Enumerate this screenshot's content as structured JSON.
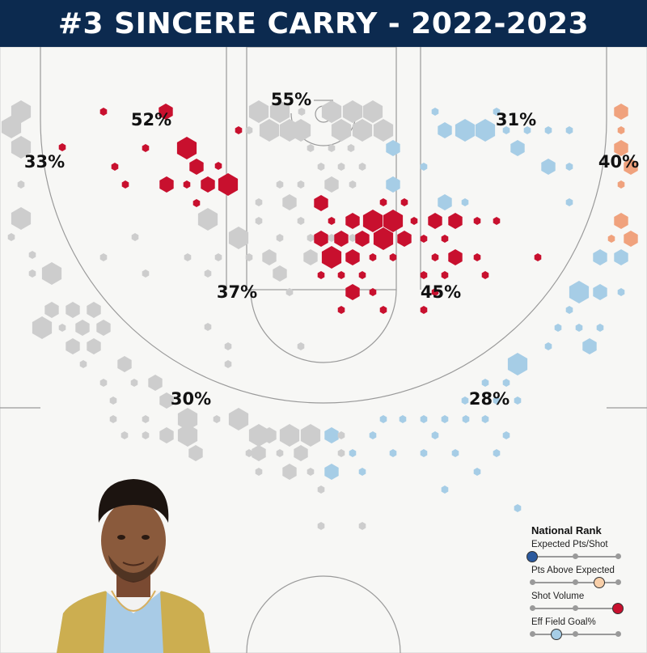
{
  "header": {
    "title": "#3 SINCERE CARRY - 2022-2023"
  },
  "colors": {
    "header_bg": "#0c2a4f",
    "hot": "#c8102e",
    "cold": "#a6cde6",
    "warm": "#f0a27d",
    "neutral": "#cdcdcd",
    "court_line": "#9a9a9a"
  },
  "chart_data": {
    "type": "hexbin shot chart",
    "title": "#3 SINCERE CARRY - 2022-2023",
    "zones": [
      {
        "zone": "above-break-left-wing",
        "fg_pct": "52%",
        "color": "hot"
      },
      {
        "zone": "top-of-key",
        "fg_pct": "55%",
        "color": "neutral"
      },
      {
        "zone": "above-break-right-wing",
        "fg_pct": "31%",
        "color": "cold"
      },
      {
        "zone": "left-corner",
        "fg_pct": "33%",
        "color": "neutral"
      },
      {
        "zone": "right-corner",
        "fg_pct": "40%",
        "color": "warm"
      },
      {
        "zone": "left-midrange",
        "fg_pct": "37%",
        "color": "neutral"
      },
      {
        "zone": "right-midrange",
        "fg_pct": "45%",
        "color": "hot"
      },
      {
        "zone": "left-paint-baseline",
        "fg_pct": "30%",
        "color": "neutral"
      },
      {
        "zone": "right-paint-baseline",
        "fg_pct": "28%",
        "color": "cold"
      }
    ],
    "shot_size_levels": [
      "small",
      "medium",
      "large"
    ]
  },
  "legend": {
    "title": "National Rank",
    "metrics": [
      {
        "label": "Expected Pts/Shot",
        "level": 0.0,
        "color": "#2b5a9e"
      },
      {
        "label": "Pts Above Expected",
        "level": 0.78,
        "color": "#f8cfa9"
      },
      {
        "label": "Shot Volume",
        "level": 1.0,
        "color": "#c8102e"
      },
      {
        "label": "Eff Field Goal%",
        "level": 0.28,
        "color": "#a6cde6"
      }
    ]
  },
  "player": {
    "photo_icon": "player-headshot-icon"
  }
}
